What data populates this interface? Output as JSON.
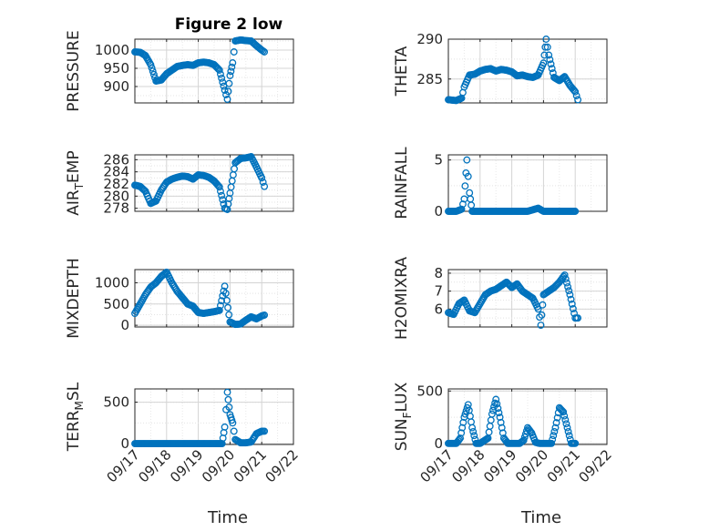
{
  "figure": {
    "title": "Figure 2 low",
    "marker_color": "#0072BD",
    "x_tick_labels": [
      "09/17",
      "09/18",
      "09/19",
      "09/20",
      "09/21",
      "09/22"
    ],
    "x_label": "Time"
  },
  "chart_data": [
    {
      "type": "scatter",
      "marker": "circle",
      "ylabel": "PRESSURE",
      "ylim": [
        855,
        1030
      ],
      "yticks": [
        900,
        950,
        1000
      ],
      "grid": true,
      "x": [
        "09/17 00:00",
        "09/17 04:00",
        "09/17 08:00",
        "09/17 12:00",
        "09/17 16:00",
        "09/17 20:00",
        "09/18 00:00",
        "09/18 04:00",
        "09/18 08:00",
        "09/18 12:00",
        "09/18 16:00",
        "09/18 20:00",
        "09/19 00:00",
        "09/19 04:00",
        "09/19 08:00",
        "09/19 12:00",
        "09/19 16:00",
        "09/19 20:00",
        "09/19 22:00",
        "09/20 00:00",
        "09/20 02:00",
        "09/20 04:00",
        "09/20 08:00",
        "09/20 12:00",
        "09/20 16:00",
        "09/20 20:00",
        "09/21 00:00",
        "09/21 02:00"
      ],
      "y": [
        995,
        994,
        985,
        960,
        915,
        918,
        935,
        945,
        955,
        958,
        960,
        958,
        965,
        967,
        965,
        960,
        945,
        890,
        865,
        930,
        965,
        1025,
        1028,
        1026,
        1025,
        1012,
        1000,
        995
      ]
    },
    {
      "type": "scatter",
      "marker": "circle",
      "ylabel": "THETA",
      "ylim": [
        282,
        290
      ],
      "yticks": [
        285,
        290
      ],
      "grid": true,
      "x": [
        "09/17 00:00",
        "09/17 06:00",
        "09/17 10:00",
        "09/17 12:00",
        "09/17 16:00",
        "09/17 20:00",
        "09/18 00:00",
        "09/18 04:00",
        "09/18 08:00",
        "09/18 12:00",
        "09/18 16:00",
        "09/18 20:00",
        "09/19 00:00",
        "09/19 04:00",
        "09/19 08:00",
        "09/19 12:00",
        "09/19 16:00",
        "09/19 20:00",
        "09/20 00:00",
        "09/20 02:00",
        "09/20 04:00",
        "09/20 08:00",
        "09/20 12:00",
        "09/20 16:00",
        "09/20 20:00",
        "09/21 00:00",
        "09/21 02:00"
      ],
      "y": [
        282.4,
        282.3,
        282.6,
        284,
        285.5,
        285.6,
        286,
        286.2,
        286.3,
        286,
        286.2,
        286.1,
        285.9,
        285.4,
        285.5,
        285.3,
        285.2,
        285.5,
        287,
        290,
        288,
        285.2,
        284.8,
        285.3,
        284.2,
        283.4,
        282.4
      ]
    },
    {
      "type": "scatter",
      "marker": "circle",
      "ylabel": "AIR_TEMP",
      "ylim": [
        277.5,
        286.8
      ],
      "yticks": [
        278,
        280,
        282,
        284,
        286
      ],
      "grid": true,
      "x": [
        "09/17 00:00",
        "09/17 04:00",
        "09/17 08:00",
        "09/17 12:00",
        "09/17 16:00",
        "09/17 20:00",
        "09/18 00:00",
        "09/18 04:00",
        "09/18 08:00",
        "09/18 12:00",
        "09/18 16:00",
        "09/18 20:00",
        "09/19 00:00",
        "09/19 04:00",
        "09/19 08:00",
        "09/19 12:00",
        "09/19 16:00",
        "09/19 20:00",
        "09/19 22:00",
        "09/20 00:00",
        "09/20 04:00",
        "09/20 08:00",
        "09/20 12:00",
        "09/20 16:00",
        "09/20 20:00",
        "09/21 00:00",
        "09/21 02:00"
      ],
      "y": [
        281.8,
        281.6,
        280.8,
        278.8,
        279.2,
        281,
        282.3,
        282.8,
        283.1,
        283.3,
        283.2,
        282.8,
        283.5,
        283.4,
        283.1,
        282.5,
        281.5,
        278,
        277.8,
        280.5,
        285.5,
        286.2,
        286.3,
        286.5,
        284.8,
        283,
        281.6
      ]
    },
    {
      "type": "scatter",
      "marker": "circle",
      "ylabel": "RAINFALL",
      "ylim": [
        0,
        5.5
      ],
      "yticks": [
        0,
        5
      ],
      "grid": true,
      "x": [
        "09/17 00:00",
        "09/17 06:00",
        "09/17 10:00",
        "09/17 12:00",
        "09/17 14:00",
        "09/17 16:00",
        "09/17 18:00",
        "09/18 00:00",
        "09/18 12:00",
        "09/19 00:00",
        "09/19 12:00",
        "09/19 20:00",
        "09/20 00:00",
        "09/20 12:00",
        "09/21 00:00"
      ],
      "y": [
        0,
        0,
        0.2,
        1.2,
        5.0,
        1.8,
        0,
        0,
        0,
        0,
        0,
        0.3,
        0,
        0,
        0
      ]
    },
    {
      "type": "scatter",
      "marker": "circle",
      "ylabel": "MIXDEPTH",
      "ylim": [
        -40,
        1310
      ],
      "yticks": [
        0,
        500,
        1000
      ],
      "grid": true,
      "x": [
        "09/17 00:00",
        "09/17 04:00",
        "09/17 08:00",
        "09/17 12:00",
        "09/17 16:00",
        "09/17 20:00",
        "09/18 00:00",
        "09/18 04:00",
        "09/18 08:00",
        "09/18 12:00",
        "09/18 16:00",
        "09/18 20:00",
        "09/19 00:00",
        "09/19 04:00",
        "09/19 08:00",
        "09/19 12:00",
        "09/19 16:00",
        "09/19 20:00",
        "09/20 00:00",
        "09/20 04:00",
        "09/20 08:00",
        "09/20 12:00",
        "09/20 16:00",
        "09/20 20:00",
        "09/21 00:00",
        "09/21 02:00"
      ],
      "y": [
        280,
        500,
        720,
        900,
        1000,
        1150,
        1250,
        1000,
        800,
        650,
        500,
        450,
        300,
        280,
        300,
        320,
        350,
        920,
        80,
        20,
        30,
        120,
        200,
        150,
        220,
        240
      ]
    },
    {
      "type": "scatter",
      "marker": "circle",
      "ylabel": "H2OMIXRA",
      "ylim": [
        5.0,
        8.2
      ],
      "yticks": [
        6,
        7,
        8
      ],
      "grid": true,
      "x": [
        "09/17 00:00",
        "09/17 04:00",
        "09/17 08:00",
        "09/17 12:00",
        "09/17 16:00",
        "09/17 20:00",
        "09/18 00:00",
        "09/18 04:00",
        "09/18 08:00",
        "09/18 12:00",
        "09/18 16:00",
        "09/18 20:00",
        "09/19 00:00",
        "09/19 04:00",
        "09/19 08:00",
        "09/19 12:00",
        "09/19 16:00",
        "09/19 20:00",
        "09/19 22:00",
        "09/20 00:00",
        "09/20 04:00",
        "09/20 08:00",
        "09/20 12:00",
        "09/20 16:00",
        "09/20 20:00",
        "09/21 00:00",
        "09/21 02:00"
      ],
      "y": [
        5.8,
        5.7,
        6.3,
        6.5,
        5.9,
        5.8,
        6.3,
        6.8,
        7.0,
        7.1,
        7.3,
        7.5,
        7.2,
        7.4,
        7.0,
        6.8,
        6.6,
        6.0,
        5.1,
        6.8,
        7.0,
        7.2,
        7.5,
        7.9,
        6.8,
        5.5,
        5.5
      ]
    },
    {
      "type": "scatter",
      "marker": "circle",
      "ylabel": "TERR_MSL",
      "ylim": [
        -10,
        660
      ],
      "yticks": [
        0,
        500
      ],
      "grid": true,
      "x": [
        "09/17 00:00",
        "09/17 12:00",
        "09/18 00:00",
        "09/18 12:00",
        "09/19 00:00",
        "09/19 12:00",
        "09/19 18:00",
        "09/19 20:00",
        "09/19 22:00",
        "09/20 00:00",
        "09/20 02:00",
        "09/20 04:00",
        "09/20 08:00",
        "09/20 12:00",
        "09/20 16:00",
        "09/20 20:00",
        "09/21 00:00",
        "09/21 02:00"
      ],
      "y": [
        0,
        0,
        0,
        0,
        0,
        0,
        0,
        200,
        620,
        350,
        250,
        50,
        10,
        10,
        20,
        120,
        150,
        150
      ]
    },
    {
      "type": "scatter",
      "marker": "circle",
      "ylabel": "SUN_FLUX",
      "ylim": [
        -10,
        520
      ],
      "yticks": [
        0,
        500
      ],
      "grid": true,
      "x": [
        "09/17 00:00",
        "09/17 06:00",
        "09/17 09:00",
        "09/17 12:00",
        "09/17 15:00",
        "09/17 18:00",
        "09/17 21:00",
        "09/18 00:00",
        "09/18 06:00",
        "09/18 09:00",
        "09/18 12:00",
        "09/18 15:00",
        "09/18 18:00",
        "09/18 21:00",
        "09/19 00:00",
        "09/19 06:00",
        "09/19 09:00",
        "09/19 12:00",
        "09/19 15:00",
        "09/19 18:00",
        "09/19 21:00",
        "09/20 00:00",
        "09/20 06:00",
        "09/20 09:00",
        "09/20 12:00",
        "09/20 15:00",
        "09/20 18:00",
        "09/20 21:00",
        "09/21 00:00"
      ],
      "y": [
        0,
        0,
        50,
        250,
        370,
        150,
        0,
        0,
        50,
        280,
        420,
        250,
        50,
        0,
        0,
        0,
        30,
        150,
        100,
        10,
        0,
        0,
        0,
        150,
        340,
        300,
        150,
        0,
        0
      ]
    }
  ]
}
